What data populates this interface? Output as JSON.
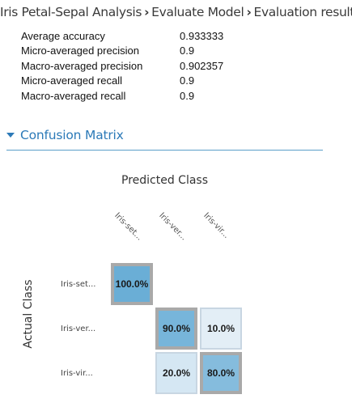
{
  "breadcrumb": {
    "items": [
      "Iris Petal-Sepal Analysis",
      "Evaluate Model",
      "Evaluation results"
    ],
    "separator": "›"
  },
  "metrics": [
    {
      "label": "Average accuracy",
      "value": "0.933333"
    },
    {
      "label": "Micro-averaged precision",
      "value": "0.9"
    },
    {
      "label": "Macro-averaged precision",
      "value": "0.902357"
    },
    {
      "label": "Micro-averaged recall",
      "value": "0.9"
    },
    {
      "label": "Macro-averaged recall",
      "value": "0.9"
    }
  ],
  "confusion_section": {
    "title": "Confusion Matrix",
    "accent": "#2c7ab8"
  },
  "chart_data": {
    "type": "heatmap",
    "xlabel": "Predicted Class",
    "ylabel": "Actual Class",
    "x_categories": [
      "Iris-set...",
      "Iris-ver...",
      "Iris-vir..."
    ],
    "y_categories": [
      "Iris-set...",
      "Iris-ver...",
      "Iris-vir..."
    ],
    "values": [
      [
        100.0,
        null,
        null
      ],
      [
        null,
        90.0,
        10.0
      ],
      [
        null,
        20.0,
        80.0
      ]
    ],
    "labels": [
      [
        "100.0%",
        "",
        ""
      ],
      [
        "",
        "90.0%",
        "10.0%"
      ],
      [
        "",
        "20.0%",
        "80.0%"
      ]
    ],
    "color_low": "#f0f5fa",
    "color_high": "#6aaed6"
  }
}
